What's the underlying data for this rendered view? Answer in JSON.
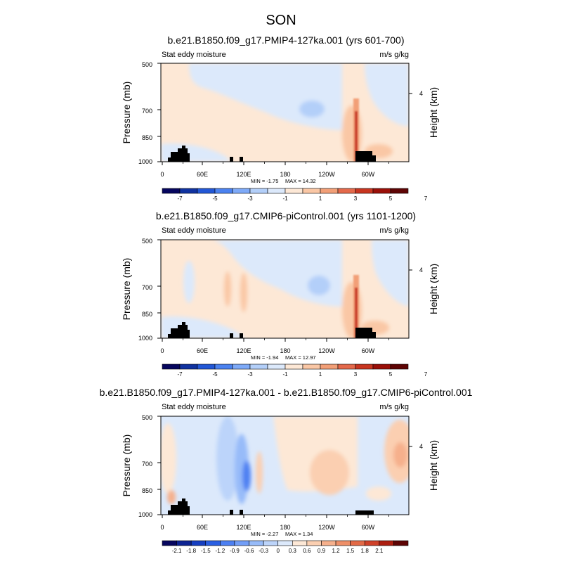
{
  "chart_data": {
    "season": "SON",
    "panels": [
      {
        "id": "p1",
        "type": "heatmap",
        "title": "b.e21.B1850.f09_g17.PMIP4-127ka.001 (yrs 601-700)",
        "left_label": "Stat eddy moisture",
        "right_label": "m/s g/kg",
        "ylabel": "Pressure (mb)",
        "ylabel_right": "Height (km)",
        "yticks": [
          "500",
          "700",
          "850",
          "1000"
        ],
        "yticks_right": [
          "4"
        ],
        "xticks": [
          "0",
          "60E",
          "120E",
          "180",
          "120W",
          "60W"
        ],
        "min_label": "MIN =  -1.75",
        "max_label": "MAX =  14.32",
        "min": -1.75,
        "max": 14.32,
        "colorbar_ticks": [
          "-7",
          "-5",
          "-3",
          "-1",
          "1",
          "3",
          "5",
          "7"
        ]
      },
      {
        "id": "p2",
        "type": "heatmap",
        "title": "b.e21.B1850.f09_g17.CMIP6-piControl.001 (yrs 1101-1200)",
        "left_label": "Stat eddy moisture",
        "right_label": "m/s g/kg",
        "ylabel": "Pressure (mb)",
        "ylabel_right": "Height (km)",
        "yticks": [
          "500",
          "700",
          "850",
          "1000"
        ],
        "yticks_right": [
          "4"
        ],
        "xticks": [
          "0",
          "60E",
          "120E",
          "180",
          "120W",
          "60W"
        ],
        "min_label": "MIN =  -1.94",
        "max_label": "MAX =  12.97",
        "min": -1.94,
        "max": 12.97,
        "colorbar_ticks": [
          "-7",
          "-5",
          "-3",
          "-1",
          "1",
          "3",
          "5",
          "7"
        ]
      },
      {
        "id": "p3",
        "type": "heatmap",
        "title": "b.e21.B1850.f09_g17.PMIP4-127ka.001 - b.e21.B1850.f09_g17.CMIP6-piControl.001",
        "left_label": "Stat eddy moisture",
        "right_label": "m/s g/kg",
        "ylabel": "Pressure (mb)",
        "ylabel_right": "Height (km)",
        "yticks": [
          "500",
          "700",
          "850",
          "1000"
        ],
        "yticks_right": [
          "4"
        ],
        "xticks": [
          "0",
          "60E",
          "120E",
          "180",
          "120W",
          "60W"
        ],
        "min_label": "MIN =  -2.27",
        "max_label": "MAX =   1.34",
        "min": -2.27,
        "max": 1.34,
        "colorbar_ticks": [
          "-2.1",
          "-1.8",
          "-1.5",
          "-1.2",
          "-0.9",
          "-0.6",
          "-0.3",
          "0",
          "0.3",
          "0.6",
          "0.9",
          "1.2",
          "1.5",
          "1.8",
          "2.1"
        ]
      }
    ],
    "palette": {
      "colorbar_12": [
        "#06065e",
        "#1032a0",
        "#2257d6",
        "#4b82f0",
        "#7eaaf8",
        "#b3cff9",
        "#dce9fb",
        "#fde8d6",
        "#fac7a5",
        "#f29f77",
        "#e4694b",
        "#c83520",
        "#9a0f08",
        "#5e0404"
      ],
      "colorbar_16": [
        "#06065e",
        "#0d2392",
        "#163fc0",
        "#2a5fe2",
        "#4d80f2",
        "#729ef7",
        "#97bbf9",
        "#bcd4fa",
        "#dce9fb",
        "#fde8d6",
        "#fbcfb1",
        "#f6b08c",
        "#ee8f68",
        "#e26a47",
        "#cf4129",
        "#ac1e10",
        "#5e0404"
      ],
      "land": "#000000"
    }
  }
}
